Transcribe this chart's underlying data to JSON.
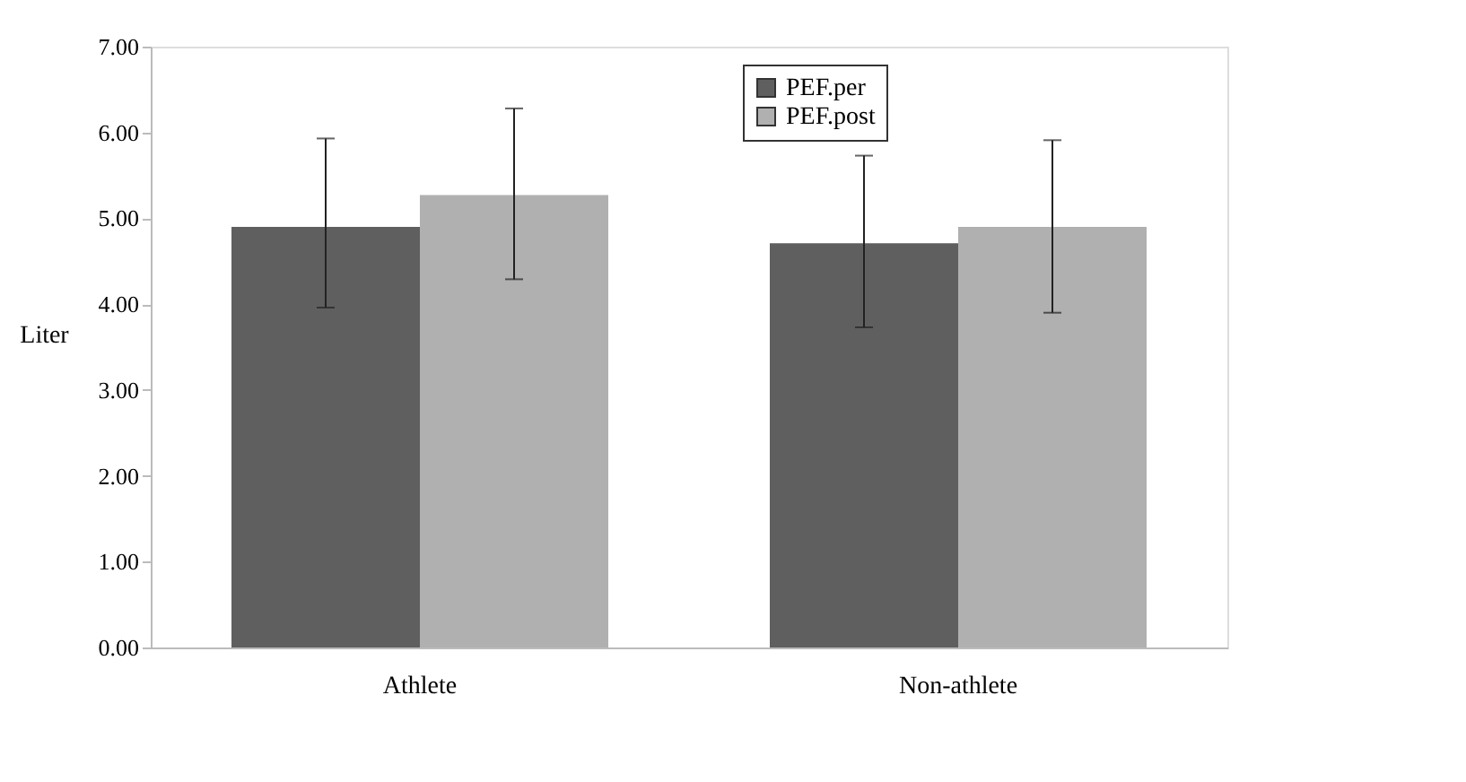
{
  "chart_data": {
    "type": "bar",
    "ylabel": "Liter",
    "categories": [
      "Athlete",
      "Non-athlete"
    ],
    "series": [
      {
        "name": "PEF.per",
        "color": "#5f5f5f",
        "values": [
          4.9,
          4.71
        ],
        "errors": [
          [
            3.96,
            5.93
          ],
          [
            3.73,
            5.73
          ]
        ]
      },
      {
        "name": "PEF.post",
        "color": "#b0b0b0",
        "values": [
          5.27,
          4.9
        ],
        "errors": [
          [
            4.29,
            6.28
          ],
          [
            3.9,
            5.91
          ]
        ]
      }
    ],
    "ylim": [
      0,
      7
    ],
    "yticks": [
      {
        "value": 0,
        "label": "0.00"
      },
      {
        "value": 1,
        "label": "1.00"
      },
      {
        "value": 2,
        "label": "2.00"
      },
      {
        "value": 3,
        "label": "3.00"
      },
      {
        "value": 4,
        "label": "4.00"
      },
      {
        "value": 5,
        "label": "5.00"
      },
      {
        "value": 6,
        "label": "6.00"
      },
      {
        "value": 7,
        "label": "7.00"
      }
    ],
    "grid": false,
    "legend": "top"
  }
}
